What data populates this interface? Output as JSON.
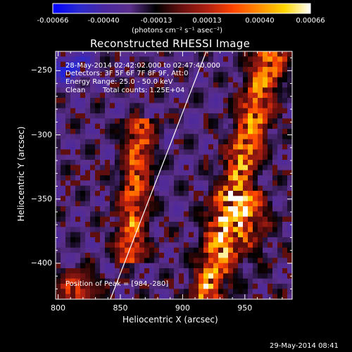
{
  "colorbar": {
    "range": [
      -0.00066,
      0.00066
    ],
    "ticks": [
      "-0.00066",
      "-0.00040",
      "-0.00013",
      "0.00013",
      "0.00040",
      "0.00066"
    ],
    "units_label": "(photons cm⁻² s⁻¹ asec⁻²)"
  },
  "chart_data": {
    "type": "heatmap",
    "title": "Reconstructed RHESSI Image",
    "xlabel": "Heliocentric X (arcsec)",
    "ylabel": "Heliocentric Y (arcsec)",
    "xlim": [
      798,
      988
    ],
    "ylim": [
      -428,
      -235
    ],
    "xticks": [
      "800",
      "850",
      "900",
      "950"
    ],
    "yticks": [
      "-250",
      "-300",
      "-350",
      "-400"
    ],
    "xtick_values": [
      800,
      850,
      900,
      950
    ],
    "ytick_values": [
      -250,
      -300,
      -350,
      -400
    ],
    "limb_line": {
      "x": [
        842,
        919
      ],
      "y": [
        -428,
        -235
      ]
    },
    "peak_position": [
      984,
      -280
    ],
    "annotations": {
      "time_range": "28-May-2014 02:42:02.000 to 02:47:40.000",
      "detectors": "Detectors: 3F 5F 6F 7F 8F 9F, Att:0",
      "energy": "Energy Range: 25.0 - 50.0 keV",
      "algorithm": "Clean",
      "counts": "Total counts: 1.25E+04",
      "peak": "Position of Peak = [984,-280]"
    },
    "colormap": [
      "#0000ff",
      "#2a2ad0",
      "#4a28a0",
      "#5a2e8c",
      "#000000",
      "#6a1010",
      "#b02010",
      "#ff4500",
      "#ff8c00",
      "#ffd700",
      "#ffffff"
    ]
  },
  "timestamp": "29-May-2014 08:41"
}
